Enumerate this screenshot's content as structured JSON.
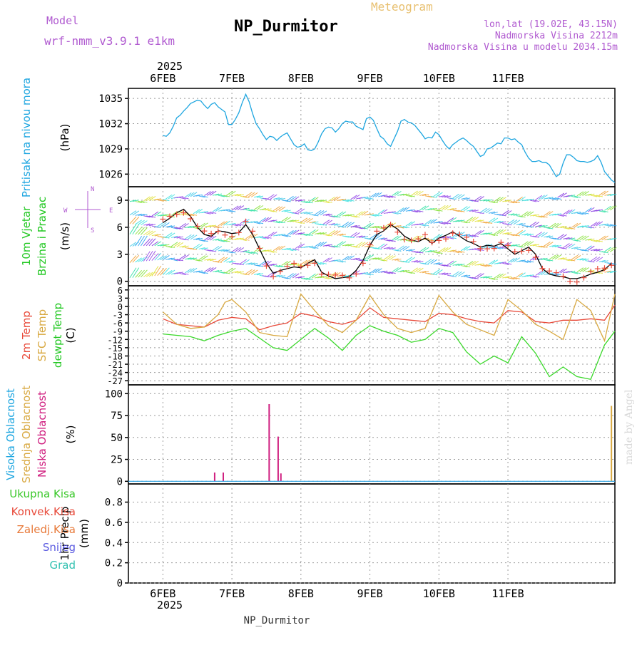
{
  "header": {
    "model_label": "Model",
    "model_name": "wrf-nmm_v3.9.1  e1km",
    "subtitle": "Meteogram",
    "title": "NP_Durmitor",
    "lonlat": "lon,lat (19.02E, 43.15N)",
    "elevation": "Nadmorska Visina 2212m",
    "model_elevation": "Nadmorska Visina u modelu 2034.15m",
    "footer_title": "NP_Durmitor",
    "watermark": "made by Angel",
    "colors": {
      "model": "#b05ad0",
      "subtitle": "#e8c070",
      "info": "#b05ad0",
      "title": "#000000"
    }
  },
  "time_axis": {
    "top_year": "2025",
    "bottom_year": "2025",
    "days": [
      "6FEB",
      "7FEB",
      "8FEB",
      "9FEB",
      "10FEB",
      "11FEB"
    ]
  },
  "chart_data": [
    {
      "type": "line",
      "panel": "pressure",
      "ylabel_lines": [
        "Pritisak na nivou mora"
      ],
      "unit": "(hPa)",
      "yticks": [
        1026,
        1029,
        1032,
        1035
      ],
      "ylim": [
        1024.5,
        1036.2
      ],
      "grid": true,
      "series": [
        {
          "color": "#1ea6e0",
          "t": [
            0,
            0.05,
            0.1,
            0.15,
            0.2,
            0.25,
            0.3,
            0.35,
            0.4,
            0.45,
            0.5,
            0.55,
            0.6,
            0.65,
            0.7,
            0.75,
            0.8,
            0.85,
            0.9,
            0.95,
            1.0,
            1.05,
            1.1,
            1.15,
            1.2,
            1.25,
            1.3,
            1.35,
            1.4,
            1.45,
            1.5,
            1.55,
            1.6,
            1.65,
            1.7,
            1.75,
            1.8,
            1.85,
            1.9,
            1.95,
            2.0,
            2.05,
            2.1,
            2.15,
            2.2,
            2.25,
            2.3,
            2.35,
            2.4,
            2.45,
            2.5,
            2.55,
            2.6,
            2.65,
            2.7,
            2.75,
            2.8,
            2.85,
            2.9,
            2.95,
            3.0,
            3.05,
            3.1,
            3.15,
            3.2,
            3.25,
            3.3,
            3.35,
            3.4,
            3.45,
            3.5,
            3.55,
            3.6,
            3.65,
            3.7,
            3.75,
            3.8,
            3.85,
            3.9,
            3.95,
            4.0,
            4.05,
            4.1,
            4.15,
            4.2,
            4.25,
            4.3,
            4.35,
            4.4,
            4.45,
            4.5,
            4.55,
            4.6,
            4.65,
            4.7,
            4.75,
            4.8,
            4.85,
            4.9,
            4.95,
            5.0,
            5.05,
            5.1,
            5.15,
            5.2,
            5.25,
            5.3,
            5.35,
            5.4,
            5.45,
            5.5,
            5.55,
            5.6,
            5.65,
            5.7,
            5.75,
            5.8,
            5.85,
            5.9,
            5.95,
            6.0,
            6.05,
            6.1,
            6.15,
            6.2,
            6.25,
            6.3,
            6.35,
            6.4,
            6.45,
            6.5,
            6.55
          ],
          "values": [
            1030.6,
            1030.5,
            1030.9,
            1031.7,
            1032.7,
            1033.0,
            1033.5,
            1033.9,
            1034.4,
            1034.6,
            1034.8,
            1034.7,
            1034.2,
            1033.8,
            1034.3,
            1034.5,
            1034.0,
            1033.7,
            1033.4,
            1031.9,
            1031.9,
            1032.5,
            1033.3,
            1034.5,
            1035.5,
            1034.6,
            1033.2,
            1032.0,
            1031.4,
            1030.7,
            1030.1,
            1030.5,
            1030.4,
            1030.0,
            1030.4,
            1030.7,
            1030.9,
            1030.2,
            1029.5,
            1029.2,
            1029.3,
            1029.6,
            1028.9,
            1028.8,
            1029.0,
            1029.8,
            1030.8,
            1031.4,
            1031.6,
            1031.5,
            1031.0,
            1031.4,
            1032.0,
            1032.3,
            1032.2,
            1032.2,
            1031.7,
            1031.5,
            1031.3,
            1032.6,
            1032.8,
            1032.4,
            1031.4,
            1030.5,
            1030.2,
            1029.6,
            1029.3,
            1030.2,
            1031.1,
            1032.3,
            1032.5,
            1032.2,
            1032.1,
            1031.8,
            1031.3,
            1030.8,
            1030.2,
            1030.4,
            1030.3,
            1031.0,
            1030.7,
            1030.0,
            1029.4,
            1029.0,
            1029.5,
            1029.8,
            1030.1,
            1030.3,
            1030.0,
            1029.6,
            1029.3,
            1028.7,
            1028.1,
            1028.3,
            1029.0,
            1029.1,
            1029.4,
            1029.7,
            1029.6,
            1030.3,
            1030.3,
            1030.1,
            1030.2,
            1029.8,
            1029.5,
            1028.6,
            1027.9,
            1027.5,
            1027.5,
            1027.6,
            1027.4,
            1027.4,
            1027.1,
            1026.4,
            1025.7,
            1026.0,
            1027.3,
            1028.3,
            1028.3,
            1028.0,
            1027.6,
            1027.5,
            1027.5,
            1027.4,
            1027.5,
            1027.7,
            1028.2,
            1027.4,
            1026.3,
            1025.8,
            1025.3,
            1025.0
          ]
        }
      ]
    },
    {
      "type": "line",
      "panel": "wind",
      "ylabel_lines": [
        "10m Vjetar",
        "Brzina i Pravac"
      ],
      "unit": "(m/s)",
      "compass_labels": {
        "north": "N",
        "south": "S",
        "west": "W",
        "east": "E"
      },
      "yticks": [
        0,
        3,
        6,
        9
      ],
      "ylim": [
        -0.5,
        10.5
      ],
      "grid": true,
      "series": [
        {
          "color": "#000000",
          "t": [
            0,
            0.1,
            0.2,
            0.3,
            0.4,
            0.5,
            0.6,
            0.7,
            0.8,
            0.9,
            1.0,
            1.1,
            1.2,
            1.3,
            1.4,
            1.5,
            1.6,
            1.7,
            1.8,
            1.9,
            2.0,
            2.1,
            2.2,
            2.3,
            2.4,
            2.5,
            2.6,
            2.7,
            2.8,
            2.9,
            3.0,
            3.1,
            3.2,
            3.3,
            3.4,
            3.5,
            3.6,
            3.7,
            3.8,
            3.9,
            4.0,
            4.1,
            4.2,
            4.3,
            4.4,
            4.5,
            4.6,
            4.7,
            4.8,
            4.9,
            5.0,
            5.1,
            5.2,
            5.3,
            5.4,
            5.5,
            5.6,
            5.7,
            5.8,
            5.9,
            6.0,
            6.1,
            6.2,
            6.3,
            6.4,
            6.5
          ],
          "values": [
            6.5,
            7.0,
            7.6,
            8.0,
            7.2,
            6.0,
            5.2,
            5.0,
            5.6,
            5.5,
            5.3,
            5.4,
            6.3,
            5.2,
            3.6,
            2.0,
            0.9,
            1.2,
            1.4,
            1.6,
            1.5,
            2.0,
            2.4,
            1.0,
            0.6,
            0.3,
            0.4,
            0.5,
            1.2,
            2.3,
            4.0,
            5.2,
            5.6,
            6.3,
            5.8,
            5.0,
            4.6,
            4.4,
            4.8,
            4.2,
            4.8,
            5.1,
            5.5,
            5.0,
            4.5,
            4.2,
            3.8,
            4.0,
            3.9,
            4.2,
            3.6,
            3.0,
            3.4,
            3.8,
            3.0,
            1.4,
            0.8,
            0.6,
            0.5,
            0.3,
            0.3,
            0.5,
            0.8,
            1.0,
            1.3,
            2.0
          ]
        }
      ]
    },
    {
      "type": "line",
      "panel": "temperature",
      "ylabel_lines": [
        "2m Temp",
        "SFC Temp",
        "dewpt Temp"
      ],
      "unit": "(C)",
      "yticks": [
        6,
        3,
        0,
        -3,
        -6,
        -9,
        -12,
        -15,
        -18,
        -21,
        -24,
        -27
      ],
      "ylim": [
        -28.5,
        7.5
      ],
      "grid": true,
      "series": [
        {
          "name": "2m Temp",
          "color": "#e84a3a",
          "t": [
            0,
            0.2,
            0.4,
            0.6,
            0.8,
            1.0,
            1.2,
            1.4,
            1.6,
            1.8,
            2.0,
            2.2,
            2.4,
            2.6,
            2.8,
            3.0,
            3.2,
            3.4,
            3.6,
            3.8,
            4.0,
            4.2,
            4.4,
            4.6,
            4.8,
            5.0,
            5.2,
            5.4,
            5.6,
            5.8,
            6.0,
            6.2,
            6.4,
            6.55
          ],
          "values": [
            -4.5,
            -6.5,
            -7.0,
            -7.5,
            -5.0,
            -4.0,
            -4.5,
            -8.5,
            -7.0,
            -6.0,
            -2.5,
            -3.5,
            -5.5,
            -6.5,
            -5.0,
            -0.5,
            -4.0,
            -4.5,
            -5.0,
            -5.5,
            -2.5,
            -3.0,
            -4.5,
            -5.5,
            -6.0,
            -1.5,
            -2.0,
            -5.5,
            -6.0,
            -5.0,
            -5.0,
            -4.5,
            -5.0,
            0.5
          ]
        },
        {
          "name": "SFC Temp",
          "color": "#d8a840",
          "t": [
            0,
            0.2,
            0.4,
            0.6,
            0.8,
            0.9,
            1.0,
            1.2,
            1.4,
            1.6,
            1.8,
            2.0,
            2.2,
            2.4,
            2.6,
            2.8,
            3.0,
            3.2,
            3.4,
            3.6,
            3.8,
            4.0,
            4.2,
            4.4,
            4.6,
            4.8,
            5.0,
            5.2,
            5.4,
            5.6,
            5.8,
            6.0,
            6.2,
            6.4,
            6.55
          ],
          "values": [
            -2.0,
            -6.5,
            -8.0,
            -7.5,
            -3.0,
            1.5,
            2.5,
            -2.0,
            -9.5,
            -10.5,
            -11.0,
            4.5,
            -1.5,
            -7.0,
            -9.5,
            -5.0,
            4.0,
            -3.0,
            -8.0,
            -9.5,
            -8.0,
            4.0,
            -2.0,
            -6.5,
            -8.5,
            -10.5,
            2.5,
            -1.5,
            -6.5,
            -9.0,
            -12.0,
            2.5,
            -1.5,
            -12.5,
            4.5
          ]
        },
        {
          "name": "dewpt Temp",
          "color": "#3ad82a",
          "t": [
            0,
            0.2,
            0.4,
            0.6,
            0.8,
            1.0,
            1.2,
            1.4,
            1.6,
            1.8,
            2.0,
            2.2,
            2.4,
            2.6,
            2.8,
            3.0,
            3.2,
            3.4,
            3.6,
            3.8,
            4.0,
            4.2,
            4.4,
            4.6,
            4.8,
            5.0,
            5.2,
            5.4,
            5.6,
            5.8,
            6.0,
            6.2,
            6.4,
            6.55
          ],
          "values": [
            -10.0,
            -10.5,
            -11.0,
            -12.5,
            -10.5,
            -9.0,
            -8.0,
            -11.5,
            -15.0,
            -16.0,
            -12.0,
            -8.0,
            -11.5,
            -16.0,
            -10.5,
            -7.0,
            -9.0,
            -10.5,
            -13.0,
            -12.0,
            -8.0,
            -9.5,
            -16.5,
            -21.0,
            -18.0,
            -20.5,
            -11.0,
            -17.0,
            -25.5,
            -22.0,
            -25.5,
            -26.5,
            -14.0,
            -9.0
          ]
        }
      ]
    },
    {
      "type": "bar",
      "panel": "cloud",
      "ylabel_lines": [
        "Visoka Oblacnost",
        "Srednja Oblacnost",
        "Niska Oblacnost"
      ],
      "unit": "(%)",
      "yticks": [
        0,
        25,
        50,
        75,
        100
      ],
      "ylim": [
        -3,
        110
      ],
      "grid": true,
      "baseline_color": "#2aa0e0",
      "series": [
        {
          "name": "Niska Oblacnost",
          "color": "#d02080",
          "t": [
            0.75,
            0.875,
            1.54,
            1.67,
            1.71
          ],
          "values": [
            10,
            10,
            88,
            51,
            9
          ]
        },
        {
          "name": "Srednja Oblacnost",
          "color": "#d8a840",
          "t": [
            6.5
          ],
          "values": [
            86
          ]
        }
      ]
    },
    {
      "type": "bar",
      "panel": "precip",
      "ylabel_lines": [
        "1hr Precip"
      ],
      "unit": "(mm)",
      "legend": [
        {
          "label": "Ukupna  Kisa",
          "color": "#3ac82a"
        },
        {
          "label": "Konvek.Kisa",
          "color": "#e84a3a"
        },
        {
          "label": "Zaledj.Kisa",
          "color": "#e87a3a"
        },
        {
          "label": "Snijeg",
          "color": "#5a5ae0"
        },
        {
          "label": "Grad",
          "color": "#30c0b0"
        }
      ],
      "yticks": [
        0,
        0.2,
        0.4,
        0.6,
        0.8
      ],
      "ylim": [
        0,
        0.98
      ],
      "grid": true,
      "series": []
    }
  ]
}
